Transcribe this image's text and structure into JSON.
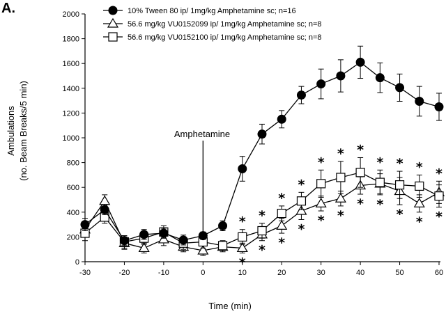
{
  "panel_label": "A.",
  "chart_data": {
    "type": "line",
    "xlabel": "Time (min)",
    "ylabel_lines": [
      "Ambulations",
      "(no. Beam Breaks/5 min)"
    ],
    "xlim": [
      -30,
      60
    ],
    "ylim": [
      0,
      2000
    ],
    "xticks": [
      -30,
      -20,
      -10,
      0,
      10,
      20,
      30,
      40,
      50,
      60
    ],
    "yticks": [
      0,
      200,
      400,
      600,
      800,
      1000,
      1200,
      1400,
      1600,
      1800,
      2000
    ],
    "x": [
      -30,
      -25,
      -20,
      -15,
      -10,
      -5,
      0,
      5,
      10,
      15,
      20,
      25,
      30,
      35,
      40,
      45,
      50,
      55,
      60
    ],
    "series": [
      {
        "name": "10% Tween 80 ip/ 1mg/kg Amphetamine sc; n=16",
        "marker": "filled-circle",
        "values": [
          300,
          420,
          170,
          220,
          230,
          175,
          210,
          290,
          750,
          1030,
          1150,
          1345,
          1435,
          1500,
          1610,
          1485,
          1405,
          1295,
          1250
        ],
        "errors": [
          50,
          40,
          40,
          40,
          40,
          40,
          30,
          40,
          100,
          80,
          70,
          70,
          120,
          130,
          130,
          120,
          110,
          120,
          110
        ]
      },
      {
        "name": "56.6 mg/kg VU0152099  ip/ 1mg/kg Amphetamine sc; n=8",
        "marker": "open-triangle",
        "values": [
          260,
          490,
          150,
          110,
          180,
          120,
          90,
          120,
          110,
          220,
          290,
          410,
          470,
          510,
          615,
          630,
          570,
          470,
          560
        ],
        "errors": [
          50,
          50,
          50,
          40,
          50,
          40,
          40,
          40,
          40,
          50,
          60,
          70,
          60,
          60,
          70,
          80,
          110,
          70,
          90
        ]
      },
      {
        "name": "56.6 mg/kg VU0152100  ip/ 1mg/kg Amphetamine sc; n=8",
        "marker": "open-square",
        "values": [
          230,
          360,
          160,
          190,
          240,
          150,
          160,
          130,
          200,
          250,
          390,
          490,
          630,
          680,
          720,
          640,
          620,
          610,
          530
        ],
        "errors": [
          60,
          50,
          50,
          50,
          50,
          50,
          50,
          40,
          60,
          60,
          60,
          70,
          110,
          130,
          120,
          100,
          110,
          90,
          90
        ]
      }
    ],
    "annotation": {
      "text": "Amphetamine",
      "x": 0
    },
    "significance_marker": "*",
    "significance_above_x": [
      10,
      15,
      20,
      25,
      30,
      35,
      40,
      45,
      50,
      55,
      60
    ],
    "significance_below_x": [
      10,
      15,
      20,
      25,
      30,
      35,
      40,
      45,
      50,
      55,
      60
    ]
  }
}
